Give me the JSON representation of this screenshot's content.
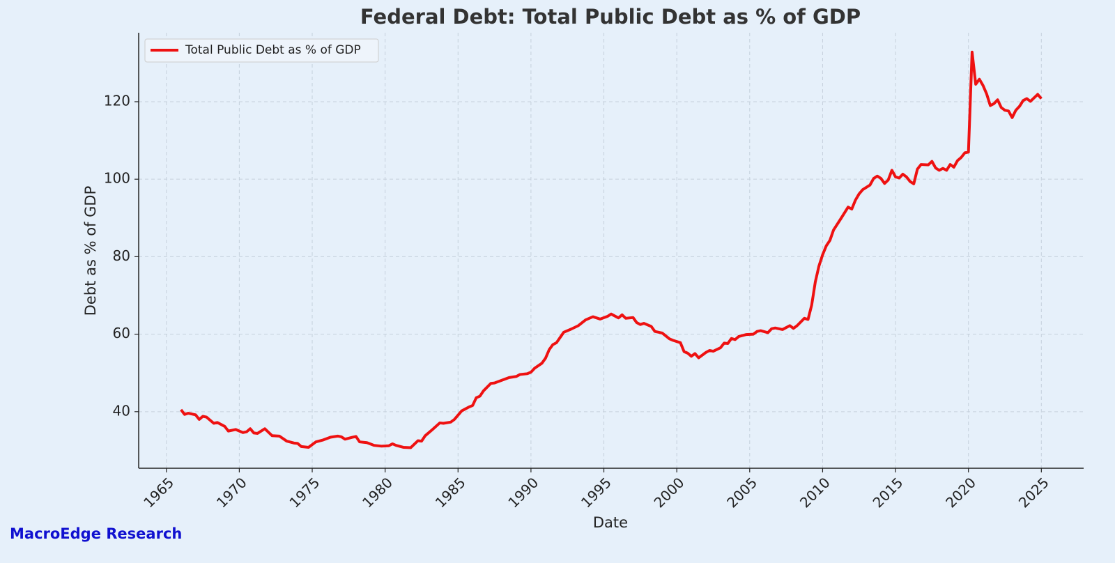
{
  "chart_data": {
    "type": "line",
    "title": "Federal Debt: Total Public Debt as % of GDP",
    "x_label": "Date",
    "y_label": "Debt as % of GDP",
    "watermark": "MacroEdge Research",
    "x": [
      1966,
      1966.25,
      1966.5,
      1967,
      1967.25,
      1967.5,
      1967.75,
      1968.25,
      1968.5,
      1969,
      1969.25,
      1969.75,
      1970.25,
      1970.5,
      1970.75,
      1971,
      1971.25,
      1971.75,
      1972.25,
      1972.75,
      1973.25,
      1973.75,
      1974,
      1974.25,
      1974.75,
      1975.25,
      1975.75,
      1976.25,
      1976.75,
      1977,
      1977.25,
      1977.75,
      1978,
      1978.25,
      1978.75,
      1979.25,
      1979.75,
      1980.25,
      1980.5,
      1980.75,
      1981.25,
      1981.75,
      1982.25,
      1982.5,
      1982.75,
      1983.25,
      1983.75,
      1984,
      1984.5,
      1984.75,
      1985.25,
      1985.75,
      1986,
      1986.25,
      1986.5,
      1986.75,
      1987.25,
      1987.5,
      1988,
      1988.5,
      1989,
      1989.25,
      1989.75,
      1990,
      1990.25,
      1990.75,
      1991,
      1991.25,
      1991.5,
      1991.75,
      1992.25,
      1992.75,
      1993.25,
      1993.75,
      1994.25,
      1994.75,
      1995.25,
      1995.5,
      1996,
      1996.25,
      1996.5,
      1997,
      1997.25,
      1997.5,
      1997.75,
      1998.25,
      1998.5,
      1999,
      1999.5,
      1999.75,
      2000.25,
      2000.5,
      2000.75,
      2001,
      2001.25,
      2001.5,
      2002,
      2002.25,
      2002.5,
      2003,
      2003.25,
      2003.5,
      2003.75,
      2004,
      2004.25,
      2004.75,
      2005.25,
      2005.5,
      2005.75,
      2006.25,
      2006.5,
      2006.75,
      2007.25,
      2007.75,
      2008,
      2008.25,
      2008.75,
      2009,
      2009.25,
      2009.5,
      2009.75,
      2010,
      2010.25,
      2010.5,
      2010.75,
      2011.25,
      2011.75,
      2012,
      2012.25,
      2012.5,
      2012.75,
      2013.25,
      2013.5,
      2013.75,
      2014,
      2014.25,
      2014.5,
      2014.75,
      2015,
      2015.25,
      2015.5,
      2015.75,
      2016,
      2016.25,
      2016.5,
      2016.75,
      2017.25,
      2017.5,
      2017.75,
      2018,
      2018.25,
      2018.5,
      2018.75,
      2019,
      2019.25,
      2019.5,
      2019.75,
      2020,
      2020.25,
      2020.5,
      2020.75,
      2021,
      2021.25,
      2021.5,
      2021.75,
      2022,
      2022.25,
      2022.5,
      2022.75,
      2023,
      2023.25,
      2023.5,
      2023.75,
      2024,
      2024.25,
      2024.5,
      2024.75,
      2025
    ],
    "series": [
      {
        "name": "Total Public Debt as % of GDP",
        "color": "#ee1111",
        "values": [
          40.5,
          39.3,
          39.6,
          39.2,
          38,
          38.8,
          38.6,
          37,
          37.2,
          36.2,
          35,
          35.4,
          34.6,
          34.8,
          35.6,
          34.5,
          34.4,
          35.6,
          33.8,
          33.7,
          32.4,
          31.9,
          31.8,
          31,
          30.8,
          32.2,
          32.7,
          33.4,
          33.7,
          33.5,
          32.9,
          33.4,
          33.6,
          32.2,
          32,
          31.3,
          31.1,
          31.2,
          31.7,
          31.3,
          30.8,
          30.7,
          32.5,
          32.4,
          33.8,
          35.4,
          37.1,
          37,
          37.3,
          38,
          40.2,
          41.2,
          41.6,
          43.6,
          44,
          45.4,
          47.3,
          47.4,
          48.1,
          48.8,
          49.1,
          49.6,
          49.8,
          50.2,
          51.2,
          52.5,
          53.8,
          56,
          57.3,
          57.8,
          60.5,
          61.3,
          62.2,
          63.7,
          64.5,
          63.9,
          64.6,
          65.2,
          64.2,
          65,
          64.1,
          64.3,
          63,
          62.5,
          62.8,
          62,
          60.7,
          60.3,
          58.8,
          58.4,
          57.8,
          55.5,
          55.1,
          54.3,
          55,
          53.9,
          55.3,
          55.8,
          55.6,
          56.5,
          57.7,
          57.6,
          58.9,
          58.6,
          59.4,
          59.9,
          60,
          60.7,
          60.9,
          60.4,
          61.4,
          61.6,
          61.2,
          62.2,
          61.5,
          62.2,
          64.1,
          63.8,
          67.5,
          73.5,
          77.6,
          80.5,
          82.8,
          84.2,
          86.9,
          89.8,
          92.8,
          92.3,
          94.6,
          96.2,
          97.3,
          98.5,
          100.2,
          100.8,
          100.2,
          98.9,
          99.8,
          102.3,
          100.6,
          100.3,
          101.3,
          100.6,
          99.4,
          98.8,
          102.6,
          103.8,
          103.7,
          104.6,
          102.9,
          102.3,
          102.8,
          102.3,
          103.8,
          103.1,
          104.8,
          105.6,
          106.8,
          107,
          132.8,
          124.5,
          125.8,
          124.2,
          122,
          119,
          119.5,
          120.5,
          118.5,
          117.8,
          117.6,
          115.9,
          117.8,
          118.8,
          120.3,
          120.8,
          120.1,
          121,
          121.9,
          120.8
        ]
      }
    ],
    "xlim": [
      1963.1,
      2027.9
    ],
    "xticks": [
      1965,
      1970,
      1975,
      1980,
      1985,
      1990,
      1995,
      2000,
      2005,
      2010,
      2015,
      2020,
      2025
    ],
    "ylim": [
      25.4,
      137.8
    ],
    "yticks": [
      40,
      60,
      80,
      100,
      120
    ],
    "grid": true,
    "legend": "upper left"
  }
}
